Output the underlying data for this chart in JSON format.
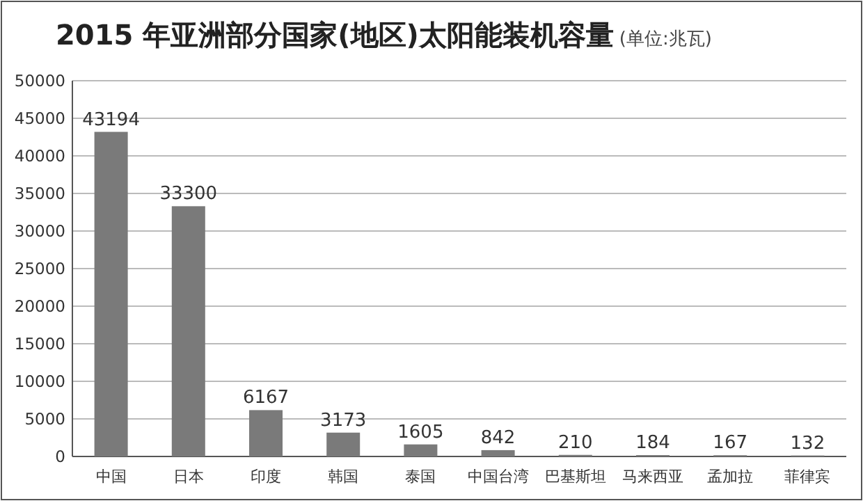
{
  "chart_data": {
    "type": "bar",
    "title": "2015 年亚洲部分国家(地区)太阳能装机容量",
    "subtitle": "(单位:兆瓦)",
    "categories": [
      "中国",
      "日本",
      "印度",
      "韩国",
      "泰国",
      "中国台湾",
      "巴基斯坦",
      "马来西亚",
      "孟加拉",
      "菲律宾"
    ],
    "values": [
      43194,
      33300,
      6167,
      3173,
      1605,
      842,
      210,
      184,
      167,
      132
    ],
    "color": "#7a7a7a",
    "ylim": [
      0,
      50000
    ],
    "yticks": [
      0,
      5000,
      10000,
      15000,
      20000,
      25000,
      30000,
      35000,
      40000,
      45000,
      50000
    ],
    "grid": "y",
    "data_labels": true
  }
}
